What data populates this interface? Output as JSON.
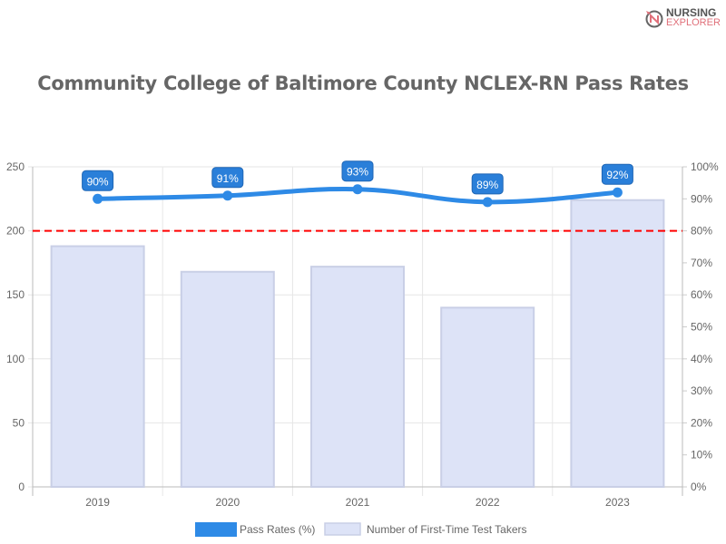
{
  "logo": {
    "line1": "NURSING",
    "line2": "EXPLORER"
  },
  "chart_data": {
    "type": "bar+line",
    "title": "Community College of Baltimore County NCLEX-RN Pass Rates",
    "categories": [
      "2019",
      "2020",
      "2021",
      "2022",
      "2023"
    ],
    "series": [
      {
        "name": "Pass Rates (%)",
        "type": "line",
        "axis": "right",
        "values": [
          90,
          91,
          93,
          89,
          92
        ],
        "color": "#2e8ae6",
        "labels": [
          "90%",
          "91%",
          "93%",
          "89%",
          "92%"
        ]
      },
      {
        "name": "Number of First-Time Test Takers",
        "type": "bar",
        "axis": "left",
        "values": [
          188,
          168,
          172,
          140,
          224
        ],
        "color": "#dde3f7"
      }
    ],
    "y_left": {
      "range": [
        0,
        250
      ],
      "ticks": [
        "0",
        "50",
        "100",
        "150",
        "200",
        "250"
      ]
    },
    "y_right": {
      "range": [
        0,
        100
      ],
      "ticks": [
        "0%",
        "10%",
        "20%",
        "30%",
        "40%",
        "50%",
        "60%",
        "70%",
        "80%",
        "90%",
        "100%"
      ]
    },
    "reference_line": {
      "value_percent": 80,
      "color": "#ff0000",
      "style": "dashed"
    },
    "grid": true,
    "legend_position": "bottom"
  }
}
